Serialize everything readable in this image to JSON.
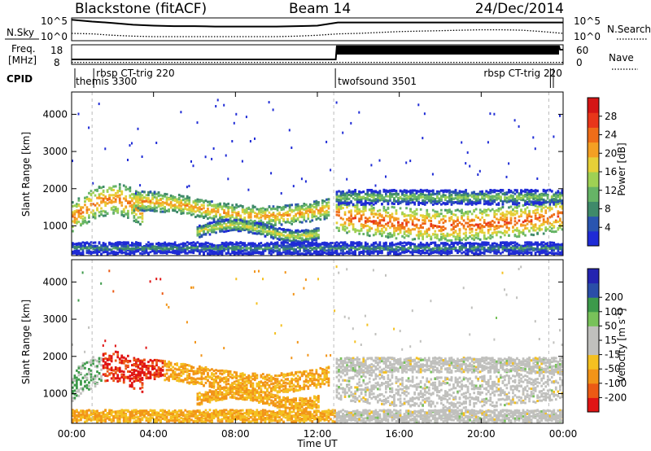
{
  "header": {
    "station": "Blackstone (fitACF)",
    "beam": "Beam 14",
    "date": "24/Dec/2014"
  },
  "colors": {
    "power_scale": [
      "#1f2bd6",
      "#2a55b0",
      "#3f8a6a",
      "#66b466",
      "#9fd154",
      "#e6d038",
      "#f4a023",
      "#ef6d18",
      "#e8361a",
      "#d41515"
    ],
    "velocity_scale": [
      "#e01414",
      "#ec5a14",
      "#f29418",
      "#f4c020",
      "#c0c0bd",
      "#c0c0bd",
      "#78c25a",
      "#3d9a4a",
      "#2a4ea8",
      "#2424b0"
    ],
    "background": "#ffffff",
    "frame": "#000000"
  },
  "chart_data": [
    {
      "panel": "noise",
      "type": "line",
      "left_label": "N.Sky",
      "right_label": "N.Search",
      "left_ticks": [
        "10^5",
        "10^0"
      ],
      "right_ticks": [
        "10^5",
        "10^0"
      ],
      "x": [
        0,
        1,
        2,
        3,
        4,
        5,
        6,
        7,
        8,
        9,
        10,
        11,
        12,
        13,
        14,
        15,
        16,
        17,
        18,
        19,
        20,
        21,
        22,
        23,
        24
      ],
      "series": [
        {
          "style": "solid",
          "values": [
            4.6,
            4.2,
            3.9,
            3.5,
            3.3,
            3.2,
            3.2,
            3.1,
            3.1,
            3.1,
            3.1,
            3.2,
            3.3,
            4.0,
            4.0,
            4.0,
            4.0,
            4.0,
            4.0,
            4.0,
            4.0,
            4.0,
            4.0,
            4.0,
            4.0
          ]
        },
        {
          "style": "dotted",
          "values": [
            1.6,
            1.5,
            1.2,
            1.0,
            0.9,
            0.9,
            0.9,
            0.9,
            0.9,
            0.9,
            0.9,
            1.0,
            1.2,
            1.5,
            1.6,
            1.8,
            2.0,
            2.1,
            2.2,
            2.3,
            2.4,
            2.4,
            2.3,
            2.0,
            1.6
          ]
        }
      ]
    },
    {
      "panel": "frequency",
      "type": "line",
      "left_label_line1": "Freq.",
      "left_label_line2": "[MHz]",
      "right_label": "Nave",
      "left_ticks": [
        "18",
        "8"
      ],
      "right_ticks": [
        "60",
        "0"
      ],
      "x": [
        0,
        12.9,
        12.95,
        23.8,
        23.85,
        24
      ],
      "series": [
        {
          "style": "solid",
          "values": [
            10.5,
            10.5,
            17.2,
            17.2,
            15.5,
            15.5
          ]
        },
        {
          "style": "dotted",
          "values": [
            9.0,
            9.0,
            9.0,
            9.0,
            9.0,
            9.0
          ]
        }
      ]
    },
    {
      "panel": "cpid",
      "type": "table",
      "label": "CPID",
      "segments": [
        {
          "start_hour": 0.0,
          "name": "themis 3300"
        },
        {
          "start_hour": 1.0,
          "name": "rbsp CT-trig 220"
        },
        {
          "start_hour": 12.8,
          "name": "twofsound 3501"
        },
        {
          "start_hour": 23.3,
          "name": "rbsp CT-trig 220"
        }
      ]
    },
    {
      "panel": "power",
      "type": "heatmap",
      "ylabel": "Slant Range [km]",
      "yticks": [
        1000,
        2000,
        3000,
        4000
      ],
      "ylim": [
        200,
        4600
      ],
      "xlim": [
        0,
        24
      ],
      "colorbar_label": "Power [dB]",
      "colorbar_ticks": [
        4,
        8,
        12,
        16,
        20,
        24,
        28
      ],
      "colorbar_range": [
        0,
        32
      ]
    },
    {
      "panel": "velocity",
      "type": "heatmap",
      "ylabel": "Slant Range [km]",
      "yticks": [
        1000,
        2000,
        3000,
        4000
      ],
      "ylim": [
        200,
        4600
      ],
      "xlim": [
        0,
        24
      ],
      "xticks": [
        "00:00",
        "04:00",
        "08:00",
        "12:00",
        "16:00",
        "20:00",
        "00:00"
      ],
      "xlabel": "Time UT",
      "colorbar_label": "Velocity [m s",
      "colorbar_unit_exp": "-1",
      "colorbar_label_close": "]",
      "colorbar_ticks": [
        "-200",
        "-100",
        "-50",
        "-15",
        "15",
        "50",
        "100",
        "200"
      ]
    }
  ]
}
